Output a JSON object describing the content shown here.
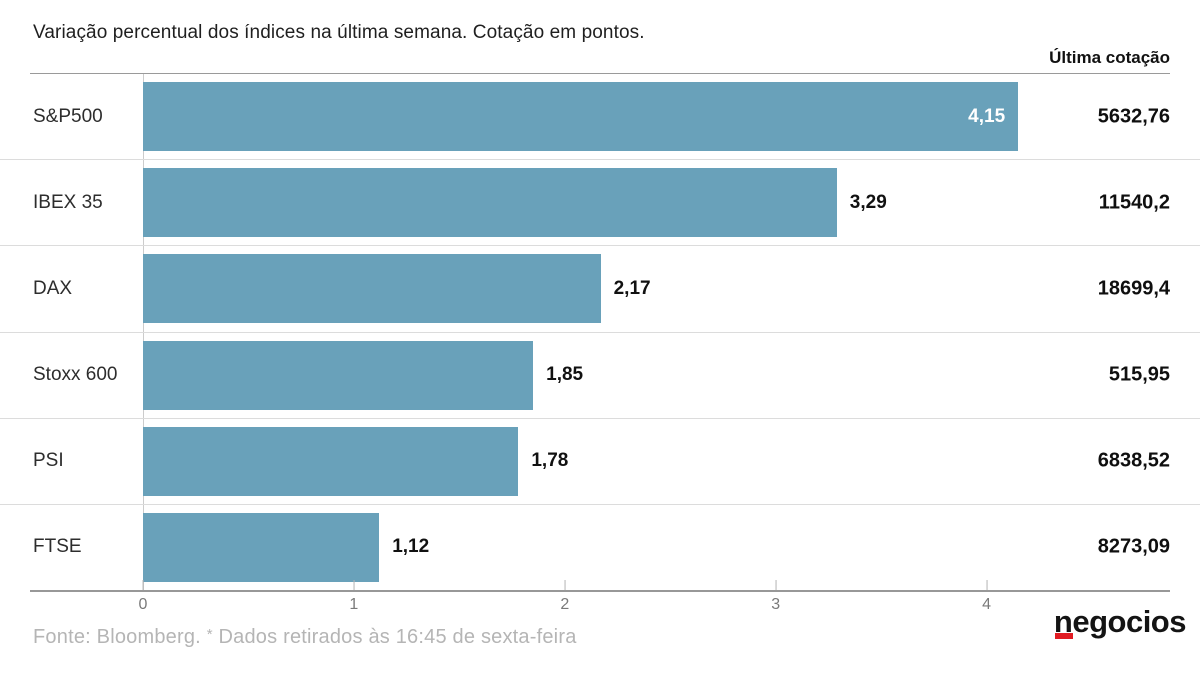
{
  "header": {
    "title": "Variação percentual dos índices na última semana. Cotação em pontos.",
    "last_quote_label": "Última cotação"
  },
  "chart_data": {
    "type": "bar",
    "orientation": "horizontal",
    "title": "Variação percentual dos índices na última semana. Cotação em pontos.",
    "categories": [
      "S&P500",
      "IBEX 35",
      "DAX",
      "Stoxx 600",
      "PSI",
      "FTSE"
    ],
    "values": [
      4.15,
      3.29,
      2.17,
      1.85,
      1.78,
      1.12
    ],
    "value_labels": [
      "4,15",
      "3,29",
      "2,17",
      "1,85",
      "1,78",
      "1,12"
    ],
    "last_quotes": [
      "5632,76",
      "11540,2",
      "18699,4",
      "515,95",
      "6838,52",
      "8273,09"
    ],
    "x_ticks": [
      0,
      1,
      2,
      3,
      4
    ],
    "x_tick_labels": [
      "0",
      "1",
      "2",
      "3",
      "4"
    ],
    "xlim": [
      0,
      4.87
    ],
    "grid": false,
    "legend": "none",
    "bar_color": "#69a1ba"
  },
  "footer": {
    "source": "Fonte: Bloomberg.",
    "note_star": "*",
    "note": "Dados retirados às 16:45 de sexta-feira",
    "logo": "negocios",
    "logo_accent_color": "#e11b22"
  }
}
